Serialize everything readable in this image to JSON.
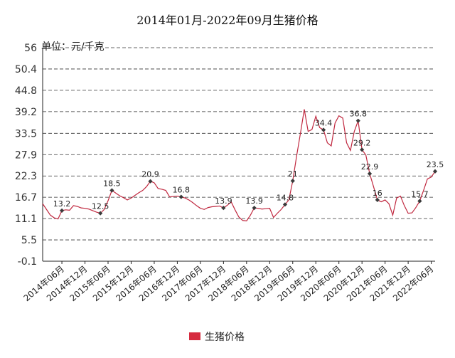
{
  "chart_data": {
    "type": "line",
    "title": "2014年01月-2022年09月生猪价格",
    "unit_label": "单位：元/千克",
    "ylim": [
      -0.1,
      56
    ],
    "y_ticks": [
      "56",
      "50.4",
      "44.8",
      "39.2",
      "33.5",
      "27.9",
      "22.3",
      "16.7",
      "11.1",
      "5.5",
      "-0.1"
    ],
    "y_tick_values": [
      56,
      50.4,
      44.8,
      39.2,
      33.5,
      27.9,
      22.3,
      16.7,
      11.1,
      5.5,
      -0.1
    ],
    "x_ticks": [
      "2014年06月",
      "2014年12月",
      "2015年06月",
      "2015年12月",
      "2016年06月",
      "2016年12月",
      "2017年06月",
      "2017年12月",
      "2018年06月",
      "2018年12月",
      "2019年06月",
      "2019年12月",
      "2020年06月",
      "2020年12月",
      "2021年06月",
      "2021年12月",
      "2022年06月"
    ],
    "x_tick_index": [
      5,
      11,
      17,
      23,
      29,
      35,
      41,
      47,
      53,
      59,
      65,
      71,
      77,
      83,
      89,
      95,
      101
    ],
    "grid": "horizontal dashed",
    "legend_position": "bottom",
    "series": [
      {
        "name": "生猪价格",
        "color": "#c0283f",
        "values": [
          15.0,
          13.5,
          12.0,
          11.3,
          11.0,
          13.2,
          13.4,
          13.3,
          14.5,
          14.3,
          13.9,
          13.8,
          13.6,
          13.2,
          12.8,
          12.5,
          13.5,
          15.8,
          18.5,
          17.8,
          17.1,
          16.6,
          16.0,
          16.5,
          17.2,
          17.9,
          18.5,
          19.5,
          20.9,
          20.5,
          19.0,
          18.8,
          18.5,
          16.8,
          16.9,
          17.0,
          16.8,
          16.5,
          16.0,
          15.3,
          14.5,
          13.8,
          13.5,
          14.0,
          14.2,
          14.3,
          14.4,
          13.9,
          14.6,
          15.5,
          13.4,
          11.5,
          10.6,
          10.5,
          12.0,
          13.9,
          13.8,
          13.6,
          13.7,
          13.8,
          11.4,
          12.5,
          13.5,
          14.8,
          16.0,
          21.0,
          27.5,
          33.5,
          39.8,
          34.0,
          34.5,
          38.0,
          35.0,
          34.4,
          31.0,
          30.2,
          36.2,
          38.1,
          37.5,
          31.0,
          29.0,
          34.0,
          36.8,
          29.2,
          27.8,
          22.9,
          19.5,
          16.0,
          15.5,
          16.0,
          15.0,
          12.0,
          16.5,
          17.0,
          14.5,
          12.5,
          12.6,
          14.0,
          15.7,
          18.5,
          21.5,
          22.0,
          23.5
        ]
      }
    ],
    "data_labels": [
      {
        "index": 5,
        "value": 13.2,
        "text": "13.2"
      },
      {
        "index": 15,
        "value": 12.5,
        "text": "12.5"
      },
      {
        "index": 18,
        "value": 18.5,
        "text": "18.5"
      },
      {
        "index": 28,
        "value": 20.9,
        "text": "20.9"
      },
      {
        "index": 36,
        "value": 16.8,
        "text": "16.8"
      },
      {
        "index": 47,
        "value": 13.9,
        "text": "13.9"
      },
      {
        "index": 55,
        "value": 13.9,
        "text": "13.9"
      },
      {
        "index": 63,
        "value": 14.8,
        "text": "14.8"
      },
      {
        "index": 65,
        "value": 21.0,
        "text": "21"
      },
      {
        "index": 73,
        "value": 34.4,
        "text": "34.4"
      },
      {
        "index": 82,
        "value": 36.8,
        "text": "36.8"
      },
      {
        "index": 83,
        "value": 29.2,
        "text": "29.2"
      },
      {
        "index": 85,
        "value": 22.9,
        "text": "22.9"
      },
      {
        "index": 87,
        "value": 16.0,
        "text": "16"
      },
      {
        "index": 98,
        "value": 15.7,
        "text": "15.7"
      },
      {
        "index": 102,
        "value": 23.5,
        "text": "23.5"
      }
    ]
  }
}
